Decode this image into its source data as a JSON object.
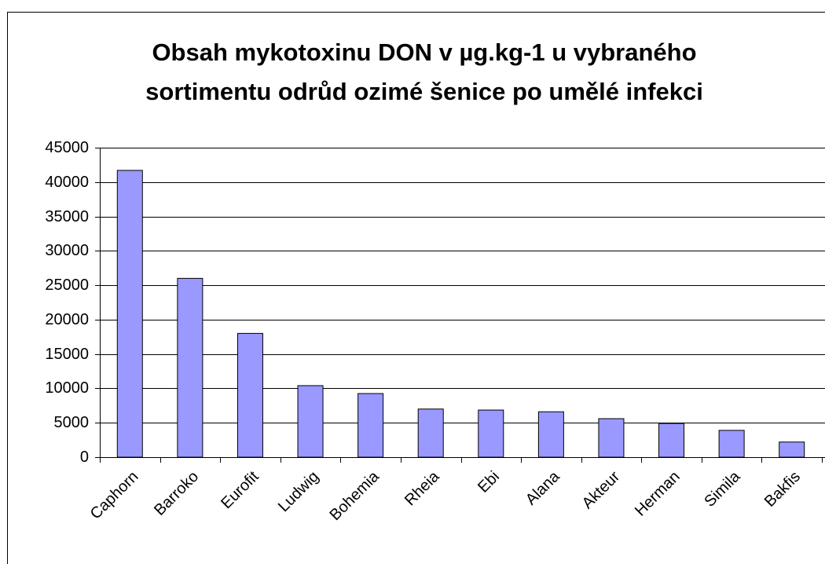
{
  "chart_data": {
    "type": "bar",
    "title": "Obsah mykotoxinu DON v µg.kg-1 u vybraného sortimentu odrůd ozimé šenice po umělé infekci",
    "categories": [
      "Caphorn",
      "Barroko",
      "Eurofit",
      "Ludwig",
      "Bohemia",
      "Rheia",
      "Ebi",
      "Alana",
      "Akteur",
      "Herman",
      "Simila",
      "Bakfis"
    ],
    "values": [
      41700,
      26000,
      18000,
      10400,
      9250,
      7000,
      6850,
      6600,
      5600,
      4900,
      3900,
      2200
    ],
    "color": "#9999ff",
    "ylim": [
      0,
      45000
    ],
    "yticks": [
      0,
      5000,
      10000,
      15000,
      20000,
      25000,
      30000,
      35000,
      40000,
      45000
    ],
    "grid": true
  }
}
